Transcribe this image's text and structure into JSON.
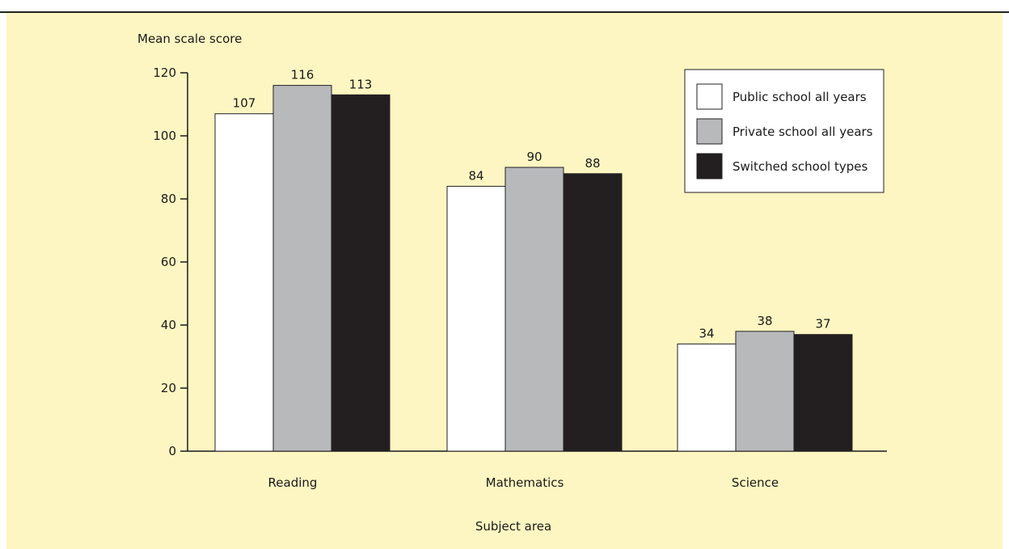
{
  "chart_data": {
    "type": "bar",
    "title": "",
    "xlabel": "Subject area",
    "ylabel": "Mean scale score",
    "categories": [
      "Reading",
      "Mathematics",
      "Science"
    ],
    "series": [
      {
        "name": "Public school all years",
        "values": [
          107,
          84,
          34
        ],
        "labels": [
          "107",
          "84",
          "34"
        ]
      },
      {
        "name": "Private school all years",
        "values": [
          116,
          90,
          38
        ],
        "labels": [
          "116",
          "90",
          "38"
        ]
      },
      {
        "name": "Switched school types",
        "values": [
          113,
          88,
          37
        ],
        "labels": [
          "113",
          "88",
          "37"
        ]
      }
    ],
    "ylim": [
      0,
      120
    ],
    "yticks": [
      "0",
      "20",
      "40",
      "60",
      "80",
      "100",
      "120"
    ],
    "grid": false,
    "legend_position": "top-right"
  },
  "colors": {
    "background": "#fef6c2",
    "series": [
      "#ffffff",
      "#b8b9bb",
      "#231f20"
    ],
    "axis": "#1a1a1a"
  }
}
